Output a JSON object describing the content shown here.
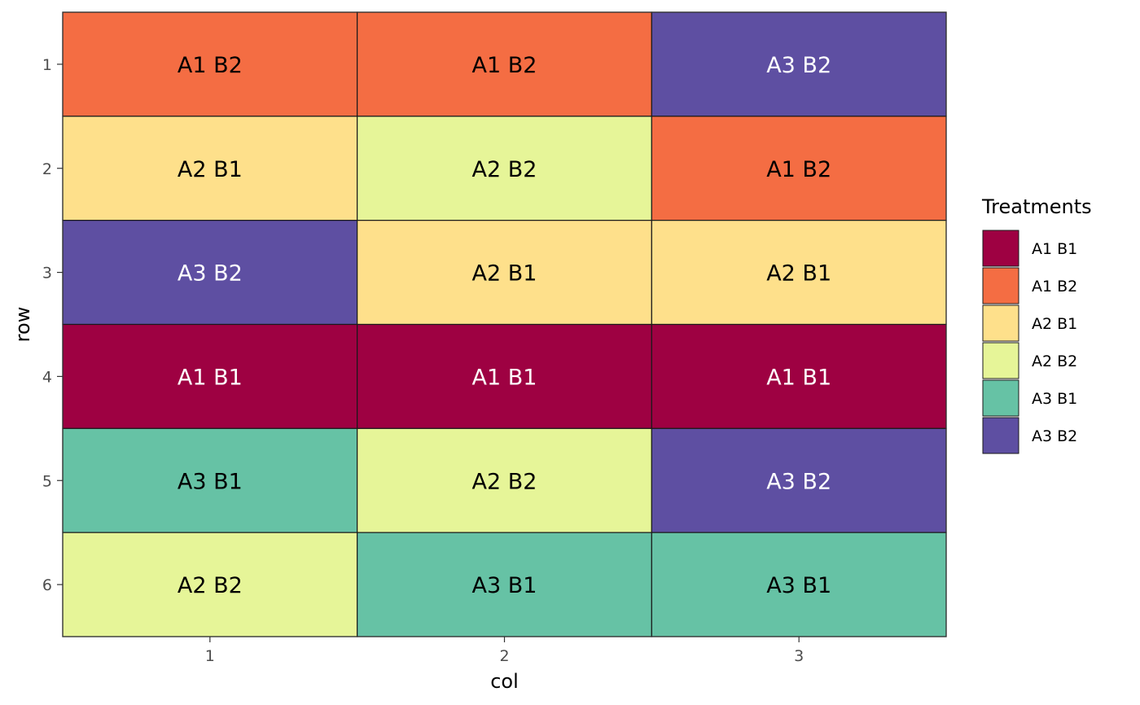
{
  "chart_data": {
    "type": "heatmap",
    "xlabel": "col",
    "ylabel": "row",
    "x_ticks": [
      "1",
      "2",
      "3"
    ],
    "y_ticks": [
      "1",
      "2",
      "3",
      "4",
      "5",
      "6"
    ],
    "y_reversed": true,
    "grid": false,
    "legend": {
      "title": "Treatments",
      "position": "right",
      "entries": [
        {
          "label": "A1 B1",
          "color": "#9E0142"
        },
        {
          "label": "A1 B2",
          "color": "#F46D43"
        },
        {
          "label": "A2 B1",
          "color": "#FEE08B"
        },
        {
          "label": "A2 B2",
          "color": "#E6F598"
        },
        {
          "label": "A3 B1",
          "color": "#66C2A5"
        },
        {
          "label": "A3 B2",
          "color": "#5E4FA2"
        }
      ]
    },
    "label_colors": {
      "A1 B1": "#FFFFFF",
      "A1 B2": "#000000",
      "A2 B1": "#000000",
      "A2 B2": "#000000",
      "A3 B1": "#000000",
      "A3 B2": "#FFFFFF"
    },
    "cells": [
      [
        "A1 B2",
        "A1 B2",
        "A3 B2"
      ],
      [
        "A2 B1",
        "A2 B2",
        "A1 B2"
      ],
      [
        "A3 B2",
        "A2 B1",
        "A2 B1"
      ],
      [
        "A1 B1",
        "A1 B1",
        "A1 B1"
      ],
      [
        "A3 B1",
        "A2 B2",
        "A3 B2"
      ],
      [
        "A2 B2",
        "A3 B1",
        "A3 B1"
      ]
    ]
  }
}
